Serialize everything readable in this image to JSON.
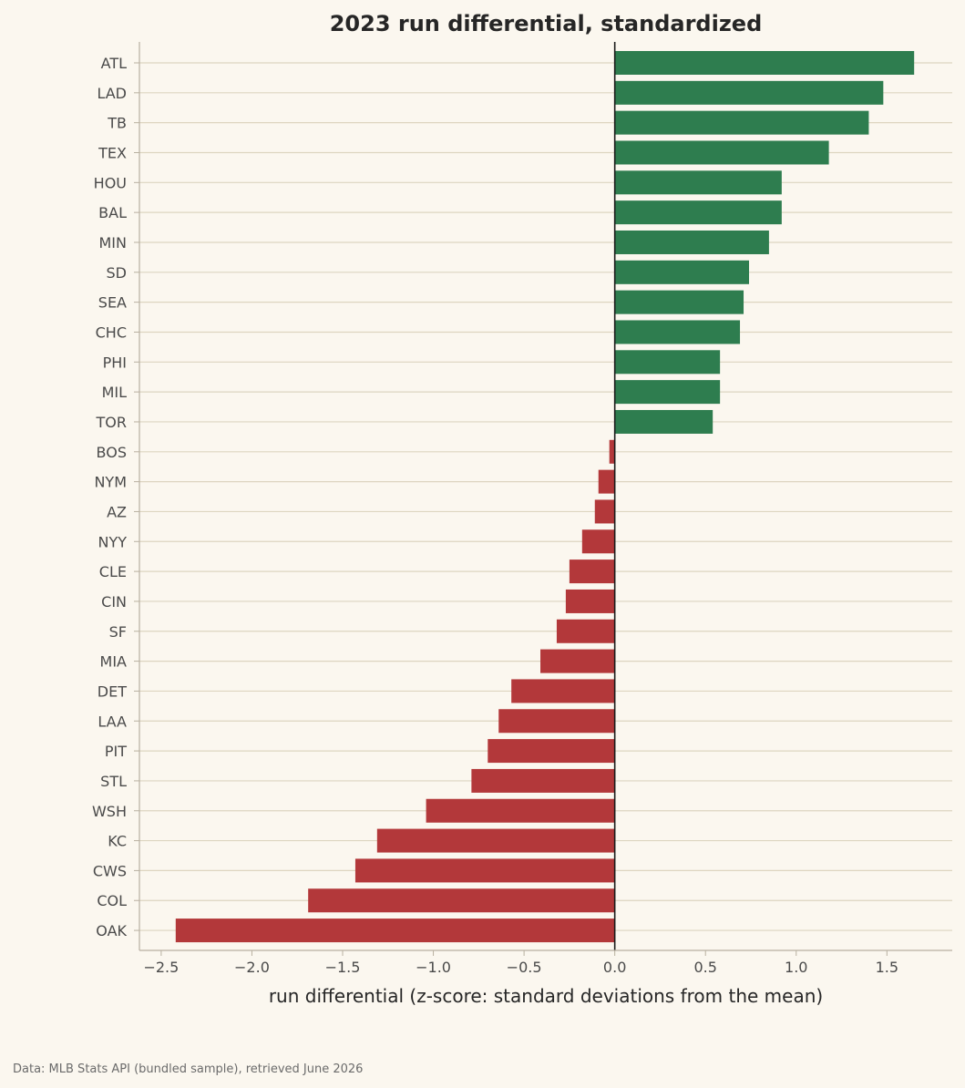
{
  "chart_data": {
    "type": "bar",
    "orientation": "horizontal",
    "title": "2023 run differential, standardized",
    "xlabel": "run differential (z-score: standard deviations from the mean)",
    "ylabel": "",
    "xlim": [
      -2.62,
      1.86
    ],
    "xticks": [
      -2.5,
      -2.0,
      -1.5,
      -1.0,
      -0.5,
      0.0,
      0.5,
      1.0,
      1.5
    ],
    "xtick_labels": [
      "−2.5",
      "−2.0",
      "−1.5",
      "−1.0",
      "−0.5",
      "0.0",
      "0.5",
      "1.0",
      "1.5"
    ],
    "grid": "horizontal",
    "positive_color": "#2e7d4f",
    "negative_color": "#b3383a",
    "categories": [
      "ATL",
      "LAD",
      "TB",
      "TEX",
      "HOU",
      "BAL",
      "MIN",
      "SD",
      "SEA",
      "CHC",
      "PHI",
      "MIL",
      "TOR",
      "BOS",
      "NYM",
      "AZ",
      "NYY",
      "CLE",
      "CIN",
      "SF",
      "MIA",
      "DET",
      "LAA",
      "PIT",
      "STL",
      "WSH",
      "KC",
      "CWS",
      "COL",
      "OAK"
    ],
    "values": [
      1.65,
      1.48,
      1.4,
      1.18,
      0.92,
      0.92,
      0.85,
      0.74,
      0.71,
      0.69,
      0.58,
      0.58,
      0.54,
      -0.03,
      -0.09,
      -0.11,
      -0.18,
      -0.25,
      -0.27,
      -0.32,
      -0.41,
      -0.57,
      -0.64,
      -0.7,
      -0.79,
      -1.04,
      -1.31,
      -1.43,
      -1.69,
      -2.42
    ]
  },
  "footer": {
    "source": "Data: MLB Stats API (bundled sample), retrieved June 2026"
  }
}
